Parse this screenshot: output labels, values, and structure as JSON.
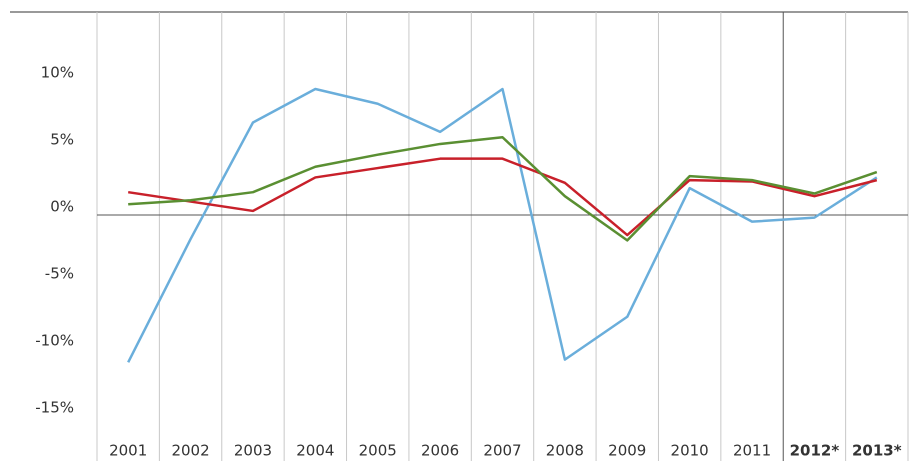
{
  "chart_data": {
    "type": "line",
    "categories": [
      "2001",
      "2002",
      "2003",
      "2004",
      "2005",
      "2006",
      "2007",
      "2008",
      "2009",
      "2010",
      "2011",
      "2012*",
      "2013*"
    ],
    "forecast_start_index": 11,
    "series": [
      {
        "color": "#6aaedb",
        "values": [
          -11,
          -1.8,
          6.9,
          9.4,
          8.3,
          6.2,
          9.4,
          -10.8,
          -7.6,
          2.0,
          -0.5,
          -0.2,
          2.8
        ]
      },
      {
        "color": "#c8202a",
        "values": [
          1.7,
          1.0,
          0.3,
          2.8,
          3.5,
          4.2,
          4.2,
          2.4,
          -1.5,
          2.6,
          2.5,
          1.4,
          2.6
        ]
      },
      {
        "color": "#5a8f32",
        "values": [
          0.8,
          1.1,
          1.7,
          3.6,
          4.5,
          5.3,
          5.8,
          1.4,
          -1.9,
          2.9,
          2.6,
          1.6,
          3.2
        ]
      }
    ],
    "ylim": [
      -16.5,
      15
    ],
    "yticks": [
      {
        "value": -15,
        "label": "-15%"
      },
      {
        "value": -10,
        "label": "-10%"
      },
      {
        "value": -5,
        "label": "-5%"
      },
      {
        "value": 0,
        "label": "0%"
      },
      {
        "value": 5,
        "label": "5%"
      },
      {
        "value": 10,
        "label": "10%"
      }
    ]
  }
}
